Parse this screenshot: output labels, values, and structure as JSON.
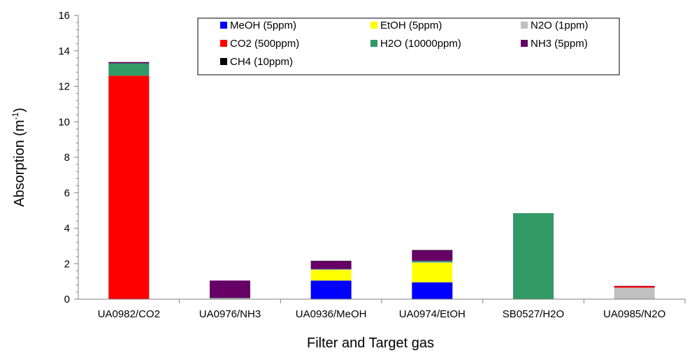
{
  "chart_data": {
    "type": "bar",
    "stacked": true,
    "xlabel": "Filter and Target gas",
    "ylabel": "Absorption (m",
    "ylabel_sup": "-1",
    "ylabel_close": ")",
    "ylim": [
      0,
      16
    ],
    "yticks": [
      0,
      2,
      4,
      6,
      8,
      10,
      12,
      14,
      16
    ],
    "yticklabels": [
      "0",
      "2",
      "4",
      "6",
      "8",
      "10",
      "12",
      "14",
      "16"
    ],
    "categories": [
      "UA0982/CO2",
      "UA0976/NH3",
      "UA0936/MeOH",
      "UA0974/EtOH",
      "SB0527/H2O",
      "UA0985/N2O"
    ],
    "legend_position": "top-right",
    "series": [
      {
        "name": "MeOH (5ppm)",
        "color": "#0000ff",
        "values": [
          0,
          0,
          1.05,
          0.95,
          0,
          0
        ]
      },
      {
        "name": "EtOH (5ppm)",
        "color": "#ffff00",
        "values": [
          0,
          0,
          0.6,
          1.1,
          0,
          0
        ]
      },
      {
        "name": "N2O (1ppm)",
        "color": "#c0c0c0",
        "values": [
          0,
          0.05,
          0.02,
          0.03,
          0,
          0.65
        ]
      },
      {
        "name": "CO2 (500ppm)",
        "color": "#ff0000",
        "values": [
          12.6,
          0,
          0,
          0,
          0,
          0.08
        ]
      },
      {
        "name": "H2O (10000ppm)",
        "color": "#339966",
        "values": [
          0.7,
          0.02,
          0.03,
          0.08,
          4.85,
          0
        ]
      },
      {
        "name": "NH3 (5ppm)",
        "color": "#660066",
        "values": [
          0.07,
          0.98,
          0.45,
          0.6,
          0,
          0.02
        ]
      },
      {
        "name": "CH4 (10ppm)",
        "color": "#000000",
        "values": [
          0,
          0,
          0.01,
          0.01,
          0,
          0
        ]
      }
    ]
  }
}
